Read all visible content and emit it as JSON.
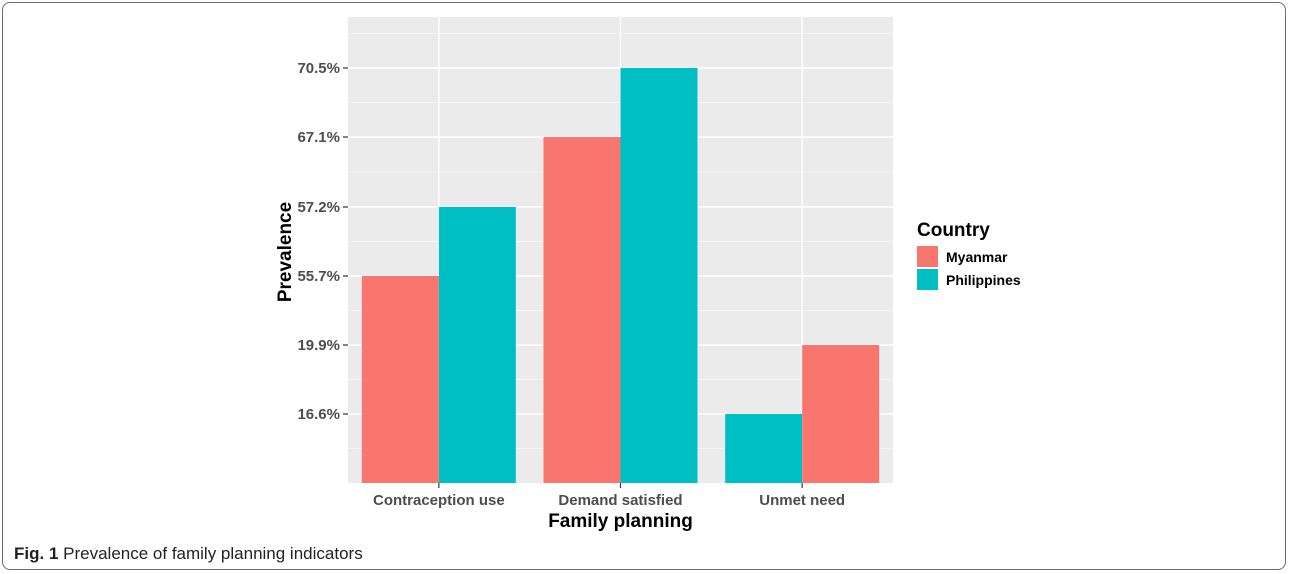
{
  "figure": {
    "caption_label": "Fig. 1",
    "caption_text": "Prevalence of family planning indicators"
  },
  "chart_data": {
    "type": "bar",
    "xlabel": "Family planning",
    "ylabel": "Prevalence",
    "categories": [
      "Contraception use",
      "Demand satisfied",
      "Unmet need"
    ],
    "y_tick_labels": [
      "16.6%",
      "19.9%",
      "55.7%",
      "57.2%",
      "67.1%",
      "70.5%"
    ],
    "legend": {
      "title": "Country",
      "placement": "right",
      "entries": [
        {
          "name": "Myanmar",
          "color": "#F8766D"
        },
        {
          "name": "Philippines",
          "color": "#00BFC4"
        }
      ]
    },
    "bars": [
      {
        "category": "Contraception use",
        "country": "Myanmar",
        "label": "55.7%",
        "color": "#F8766D"
      },
      {
        "category": "Contraception use",
        "country": "Philippines",
        "label": "57.2%",
        "color": "#00BFC4"
      },
      {
        "category": "Demand satisfied",
        "country": "Myanmar",
        "label": "67.1%",
        "color": "#F8766D"
      },
      {
        "category": "Demand satisfied",
        "country": "Philippines",
        "label": "70.5%",
        "color": "#00BFC4"
      },
      {
        "category": "Unmet need",
        "country": "Philippines",
        "label": "16.6%",
        "color": "#00BFC4"
      },
      {
        "category": "Unmet need",
        "country": "Myanmar",
        "label": "19.9%",
        "color": "#F8766D"
      }
    ],
    "grid": true,
    "panel_background": "#EBEBEB"
  }
}
